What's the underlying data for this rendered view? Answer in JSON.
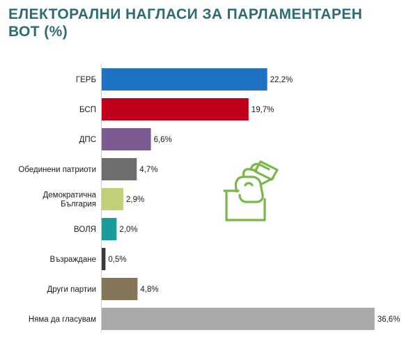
{
  "chart_data": {
    "type": "bar",
    "orientation": "horizontal",
    "title": "ЕЛЕКТОРАЛНИ НАГЛАСИ ЗА ПАРЛАМЕНТАРЕН\nВОТ (%)",
    "categories": [
      "ГЕРБ",
      "БСП",
      "ДПС",
      "Обединени патриоти",
      "Демократична\nБългария",
      "ВОЛЯ",
      "Възраждане",
      "Други партии",
      "Няма да гласувам"
    ],
    "values": [
      22.2,
      19.7,
      6.6,
      4.7,
      2.9,
      2.0,
      0.5,
      4.8,
      36.6
    ],
    "value_labels": [
      "22,2%",
      "19,7%",
      "6,6%",
      "4,7%",
      "2,9%",
      "2,0%",
      "0,5%",
      "4,8%",
      "36,6%"
    ],
    "colors": [
      "#1f72c4",
      "#c0001a",
      "#7b5a92",
      "#6e6e6e",
      "#c4cf7a",
      "#1d9a9a",
      "#3a3a3a",
      "#857558",
      "#a9a9a9"
    ],
    "xlim": [
      0,
      37
    ],
    "grid": false,
    "legend": "none",
    "xlabel": "",
    "ylabel": ""
  },
  "decoration": {
    "icon": "ballot-box-vote-icon",
    "icon_color": "#7ab648"
  }
}
